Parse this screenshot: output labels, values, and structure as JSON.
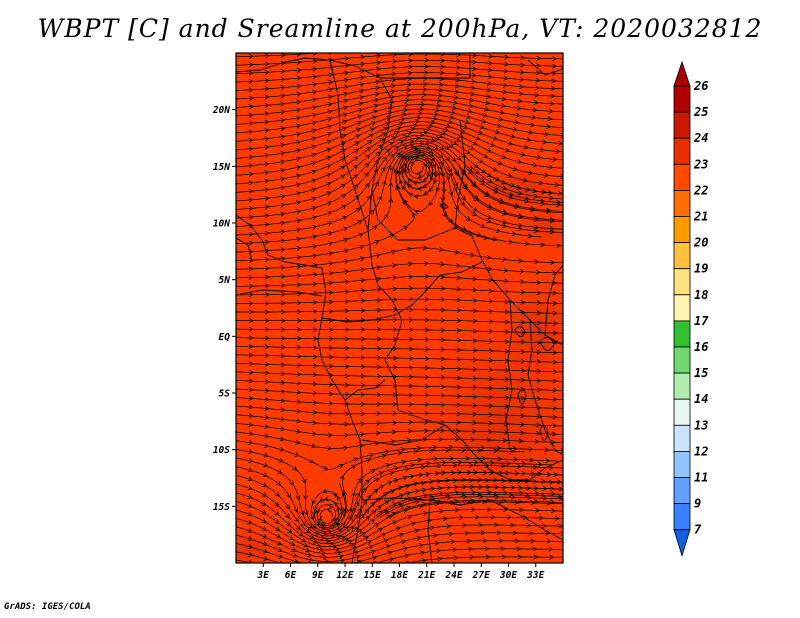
{
  "title": "WBPT [C] and Sreamline at 200hPa, VT: 2020032812",
  "credit": "GrADS: IGES/COLA",
  "map": {
    "lon_range": [
      0,
      36
    ],
    "lat_range": [
      -20,
      25
    ],
    "x_ticks": [
      {
        "lon": 3,
        "label": "3E"
      },
      {
        "lon": 6,
        "label": "6E"
      },
      {
        "lon": 9,
        "label": "9E"
      },
      {
        "lon": 12,
        "label": "12E"
      },
      {
        "lon": 15,
        "label": "15E"
      },
      {
        "lon": 18,
        "label": "18E"
      },
      {
        "lon": 21,
        "label": "21E"
      },
      {
        "lon": 24,
        "label": "24E"
      },
      {
        "lon": 27,
        "label": "27E"
      },
      {
        "lon": 30,
        "label": "30E"
      },
      {
        "lon": 33,
        "label": "33E"
      }
    ],
    "y_ticks": [
      {
        "lat": 20,
        "label": "20N"
      },
      {
        "lat": 15,
        "label": "15N"
      },
      {
        "lat": 10,
        "label": "10N"
      },
      {
        "lat": 5,
        "label": "5N"
      },
      {
        "lat": 0,
        "label": "EQ"
      },
      {
        "lat": -5,
        "label": "5S"
      },
      {
        "lat": -10,
        "label": "10S"
      },
      {
        "lat": -15,
        "label": "15S"
      }
    ],
    "field_color": "#ff3b00",
    "field_color_dark": "#e0300c",
    "streamline_color": "#000000",
    "circulation_centers": [
      {
        "lon": 20,
        "lat": 15,
        "sense": "anticyclonic"
      },
      {
        "lon": 10,
        "lat": -16,
        "sense": "anticyclonic"
      }
    ]
  },
  "colorbar": {
    "labels": [
      "26",
      "25",
      "24",
      "23",
      "22",
      "21",
      "20",
      "19",
      "18",
      "17",
      "16",
      "15",
      "14",
      "13",
      "12",
      "11",
      "9",
      "7"
    ],
    "colors": [
      "#b00000",
      "#cc1800",
      "#e83000",
      "#ff4a00",
      "#ff6c00",
      "#ff9a00",
      "#ffc040",
      "#ffe080",
      "#fff4b0",
      "#30c030",
      "#70d870",
      "#b0ecb0",
      "#e8f8f0",
      "#c8e4ff",
      "#90c4ff",
      "#60a0ff",
      "#3880ff",
      "#1060e0"
    ]
  }
}
